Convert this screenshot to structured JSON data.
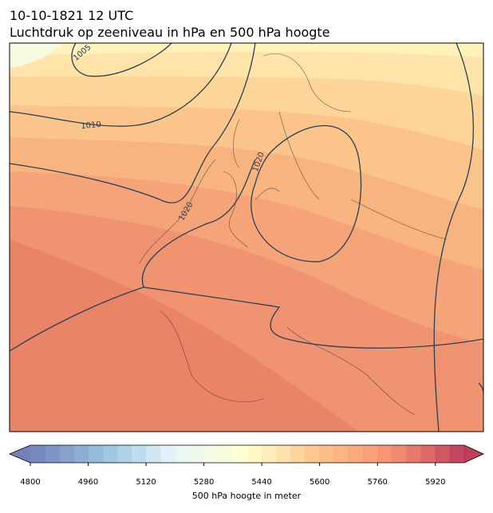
{
  "header": {
    "title": "10-10-1821 12 UTC",
    "subtitle": "Luchtdruk op zeeniveau in hPa en 500 hPa hoogte"
  },
  "contour_labels": [
    "1005",
    "1010",
    "1020",
    "1020"
  ],
  "colorbar": {
    "vmin": 4800,
    "vmax": 6000,
    "step": 40,
    "ticks": [
      4800,
      4960,
      5120,
      5280,
      5440,
      5600,
      5760,
      5920
    ],
    "label": "500 hPa hoogte in meter"
  }
}
